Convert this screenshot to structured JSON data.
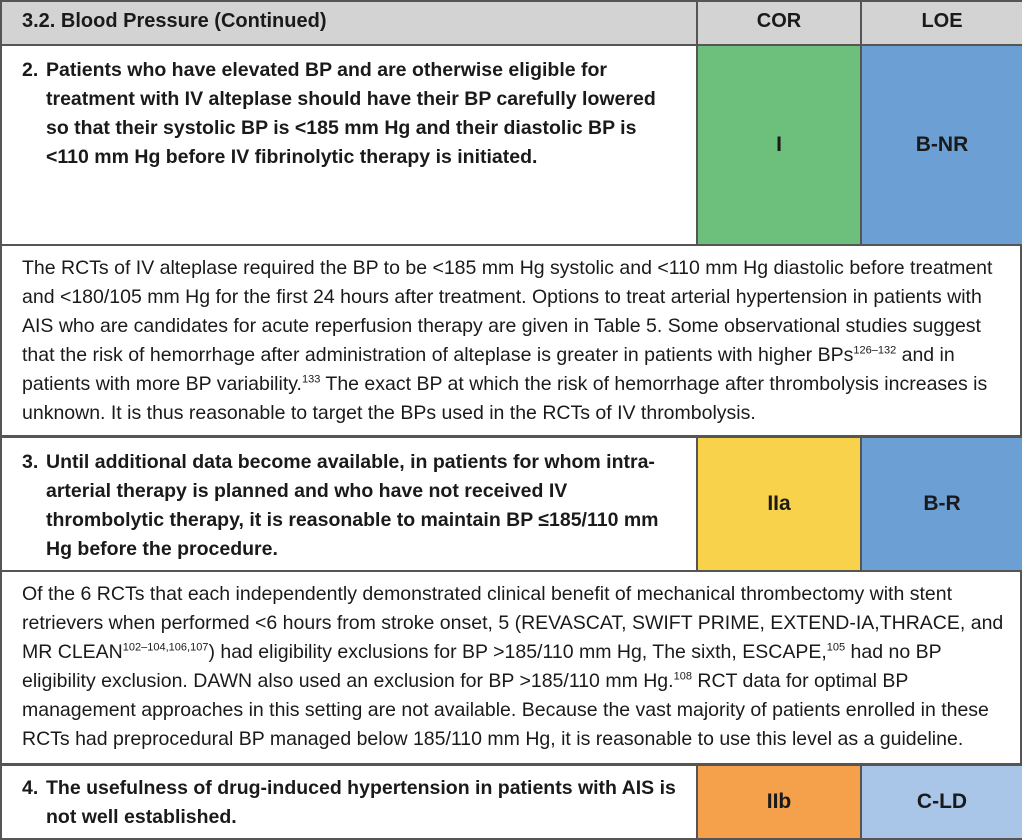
{
  "header": {
    "title": "3.2. Blood Pressure (Continued)",
    "cor": "COR",
    "loe": "LOE"
  },
  "recommendations": [
    {
      "number": "2.",
      "text": "Patients who have elevated BP and are otherwise eligible for treatment with IV alteplase should have their BP carefully lowered so that their systolic BP is <185 mm Hg and their diastolic BP is <110 mm Hg before IV fibrinolytic therapy is initiated.",
      "cor": "I",
      "loe": "B-NR",
      "cor_color": "#6dbf7c",
      "loe_color": "#6c9fd4"
    },
    {
      "number": "3.",
      "text": "Until additional data become available, in patients for whom intra-arterial therapy is planned and who have not received IV thrombolytic therapy, it is reasonable to maintain BP ≤185/110 mm Hg before the procedure.",
      "cor": "IIa",
      "loe": "B-R",
      "cor_color": "#f7d24a",
      "loe_color": "#6c9fd4"
    },
    {
      "number": "4.",
      "text": "The usefulness of drug-induced hypertension in patients with AIS is not well established.",
      "cor": "IIb",
      "loe": "C-LD",
      "cor_color": "#f5a04a",
      "loe_color": "#a9c6e8"
    }
  ],
  "support1": {
    "p1": "The RCTs of IV alteplase required the BP to be <185 mm Hg systolic and <110 mm Hg diastolic before treatment and <180/105 mm Hg for the first 24 hours after treatment. Options to treat arterial hypertension in patients with AIS who are candidates for acute reperfusion therapy are given in Table 5. Some observational studies suggest that the risk of hemorrhage after administration of alteplase is greater in patients with higher BPs",
    "ref1": "126–132",
    "p2": " and in patients with more BP variability.",
    "ref2": "133",
    "p3": " The exact BP at which the risk of hemorrhage after thrombolysis increases is unknown. It is thus reasonable to target the BPs used in the RCTs of IV thrombolysis."
  },
  "support2": {
    "p1": "Of the 6 RCTs that each independently demonstrated clinical benefit of mechanical thrombectomy with stent retrievers when performed <6 hours from stroke onset, 5 (REVASCAT, SWIFT PRIME, EXTEND-IA,THRACE, and MR CLEAN",
    "ref1": "102–104,106,107",
    "p2": ") had eligibility exclusions for BP >185/110 mm Hg, The sixth, ESCAPE,",
    "ref2": "105",
    "p3": " had no BP eligibility exclusion. DAWN also used an exclusion for BP >185/110 mm Hg.",
    "ref3": "108",
    "p4": " RCT data for optimal BP management approaches in this setting are not available. Because the vast majority of patients enrolled in these RCTs had preprocedural BP managed below 185/110 mm Hg, it is reasonable to use this level as a guideline."
  }
}
